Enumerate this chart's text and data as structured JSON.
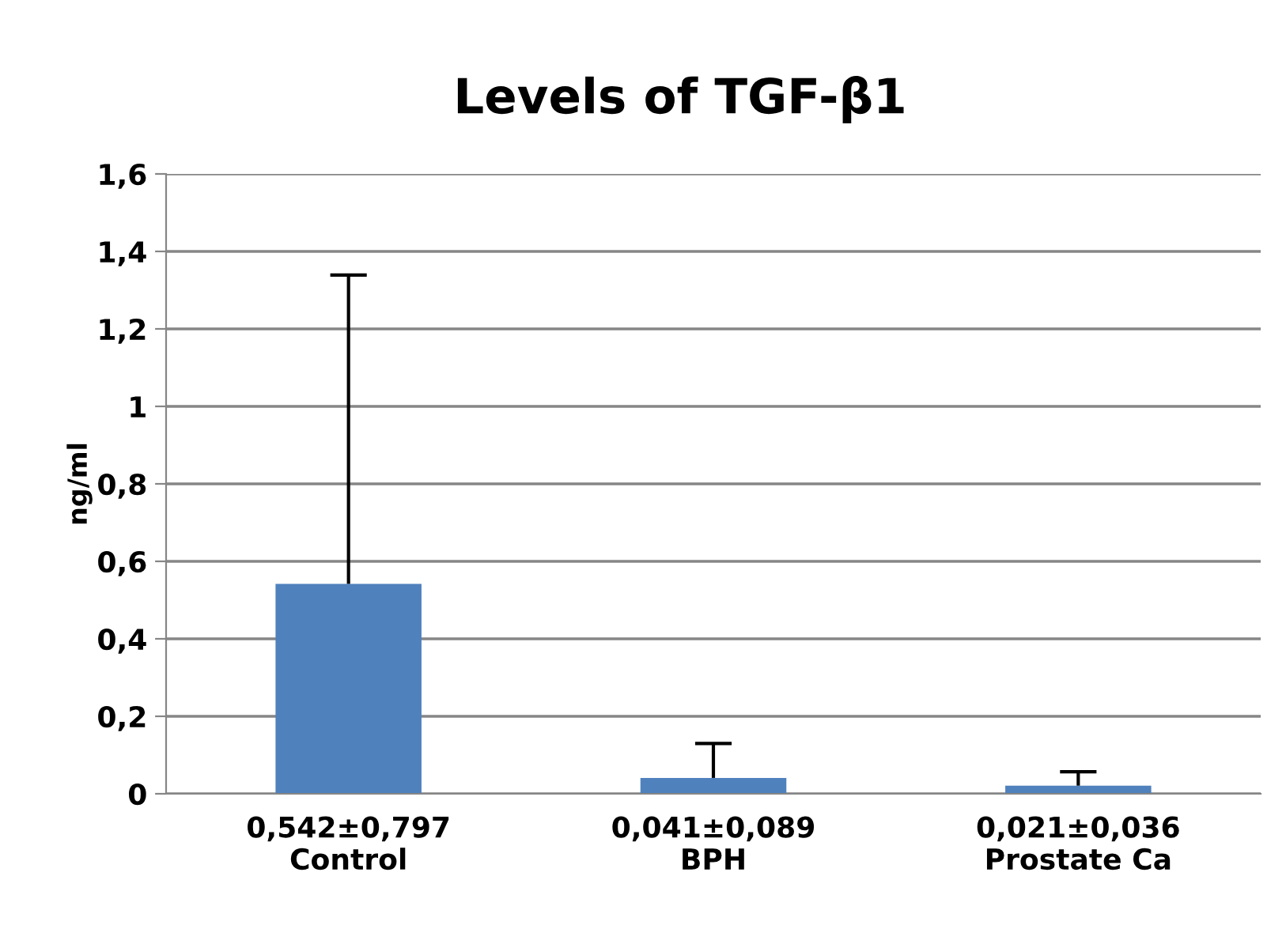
{
  "chart_data": {
    "type": "bar",
    "title": "Levels of TGF-β1",
    "ylabel": "ng/ml",
    "categories": [
      "0,542±0,797\nControl",
      "0,041±0,089\nBPH",
      "0,021±0,036\nProstate Ca"
    ],
    "values": [
      0.542,
      0.041,
      0.021
    ],
    "errors": [
      [
        0.542,
        1.339
      ],
      [
        0.041,
        0.13
      ],
      [
        0.021,
        0.057
      ]
    ],
    "color": "#4f81bd",
    "ylim": [
      0,
      1.6
    ],
    "yticks": [
      0,
      {
        "value": 0.2,
        "label": "0,2"
      },
      {
        "value": 0.4,
        "label": "0,4"
      },
      {
        "value": 0.6,
        "label": "0,6"
      },
      {
        "value": 0.8,
        "label": "0,8"
      },
      1,
      {
        "value": 1.2,
        "label": "1,2"
      },
      {
        "value": 1.4,
        "label": "1,4"
      },
      {
        "value": 1.6,
        "label": "1,6"
      }
    ],
    "grid": "y"
  }
}
